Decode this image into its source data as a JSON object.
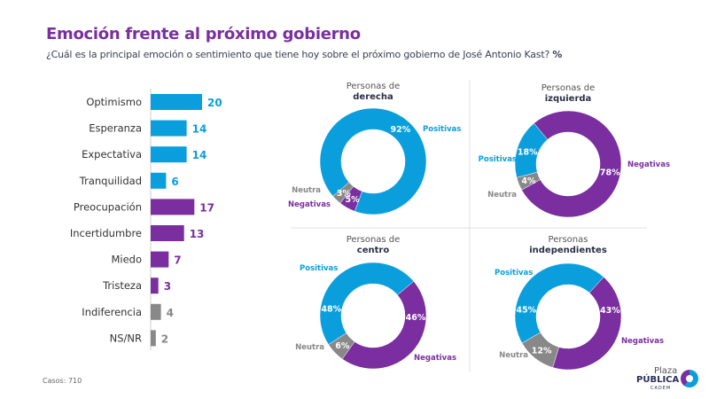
{
  "header": {
    "title": "Emoción frente al próximo gobierno",
    "subtitle": "¿Cuál es la principal emoción o sentimiento que tiene hoy sobre el próximo gobierno de José Antonio Kast?",
    "subtitle_unit": "%"
  },
  "footer": {
    "casos": "Casos: 710",
    "logo_text": [
      "Plaza",
      "PÚBLICA",
      "CADEM"
    ]
  },
  "colors": {
    "positive": "#0a9fdc",
    "negative": "#7a2ea0",
    "neutral": "#888888",
    "title": "#7a2ea0"
  },
  "chart_data": [
    {
      "type": "bar",
      "orientation": "horizontal",
      "categories": [
        "Optimismo",
        "Esperanza",
        "Expectativa",
        "Tranquilidad",
        "Preocupación",
        "Incertidumbre",
        "Miedo",
        "Tristeza",
        "Indiferencia",
        "NS/NR"
      ],
      "values": [
        20,
        14,
        14,
        6,
        17,
        13,
        7,
        3,
        4,
        2
      ],
      "groups": [
        "positive",
        "positive",
        "positive",
        "positive",
        "negative",
        "negative",
        "negative",
        "negative",
        "neutral",
        "neutral"
      ]
    },
    {
      "type": "pie",
      "donut": true,
      "title_line1": "Personas de",
      "title_line2": "derecha",
      "slices": [
        {
          "label": "Positivas",
          "value": 92,
          "group": "positive"
        },
        {
          "label": "Negativas",
          "value": 5,
          "group": "negative"
        },
        {
          "label": "Neutra",
          "value": 3,
          "group": "neutral"
        }
      ]
    },
    {
      "type": "pie",
      "donut": true,
      "title_line1": "Personas de",
      "title_line2": "izquierda",
      "slices": [
        {
          "label": "Negativas",
          "value": 78,
          "group": "negative"
        },
        {
          "label": "Neutra",
          "value": 4,
          "group": "neutral"
        },
        {
          "label": "Positivas",
          "value": 18,
          "group": "positive"
        }
      ]
    },
    {
      "type": "pie",
      "donut": true,
      "title_line1": "Personas de",
      "title_line2": "centro",
      "slices": [
        {
          "label": "Positivas",
          "value": 48,
          "group": "positive"
        },
        {
          "label": "Negativas",
          "value": 46,
          "group": "negative"
        },
        {
          "label": "Neutra",
          "value": 6,
          "group": "neutral"
        }
      ]
    },
    {
      "type": "pie",
      "donut": true,
      "title_line1": "Personas",
      "title_line2": "independientes",
      "slices": [
        {
          "label": "Positivas",
          "value": 45,
          "group": "positive"
        },
        {
          "label": "Negativas",
          "value": 43,
          "group": "negative"
        },
        {
          "label": "Neutra",
          "value": 12,
          "group": "neutral"
        }
      ]
    }
  ]
}
